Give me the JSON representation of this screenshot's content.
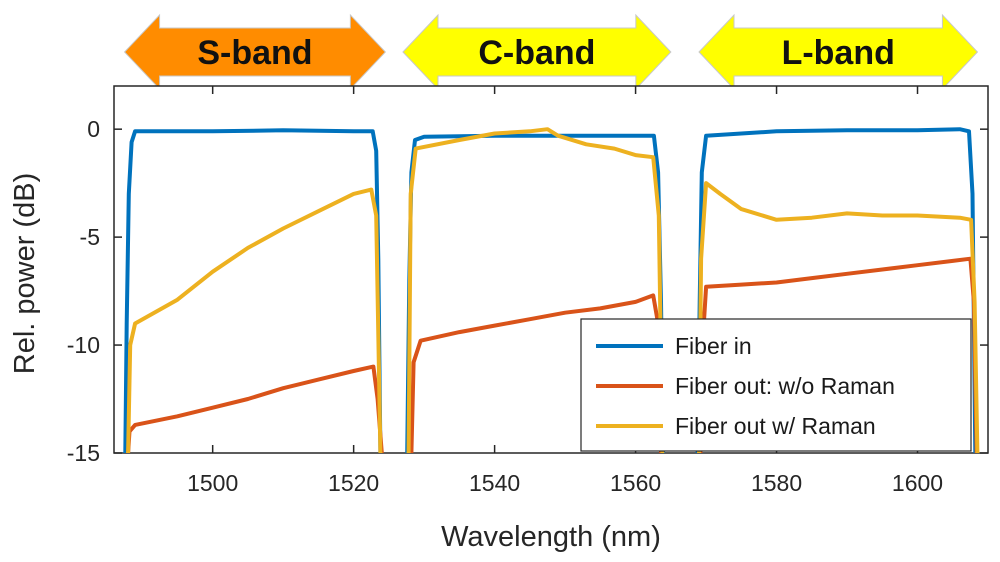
{
  "chart_data": {
    "type": "line",
    "xlabel": "Wavelength (nm)",
    "ylabel": "Rel. power (dB)",
    "xlim": [
      1486,
      1610
    ],
    "ylim": [
      -15,
      2
    ],
    "xticks": [
      1500,
      1520,
      1540,
      1560,
      1580,
      1600
    ],
    "yticks": [
      0,
      -5,
      -10,
      -15
    ],
    "xtick_labels": [
      "1500",
      "1520",
      "1540",
      "1560",
      "1580",
      "1600"
    ],
    "ytick_labels": [
      "0",
      "-5",
      "-10",
      "-15"
    ],
    "grid": false,
    "legend_position": "bottom-right",
    "bands": [
      {
        "label": "S-band",
        "start": 1487.5,
        "end": 1524.5,
        "color": "#FF8C00"
      },
      {
        "label": "C-band",
        "start": 1527.0,
        "end": 1565.0,
        "color": "#FFFF00"
      },
      {
        "label": "L-band",
        "start": 1569.0,
        "end": 1608.5,
        "color": "#FFFF00"
      }
    ],
    "series": [
      {
        "name": "Fiber in",
        "color": "#0072BD",
        "segments": [
          [
            [
              1487.6,
              -15
            ],
            [
              1487.8,
              -9
            ],
            [
              1488.1,
              -3
            ],
            [
              1488.5,
              -0.6
            ],
            [
              1489,
              -0.1
            ],
            [
              1500,
              -0.1
            ],
            [
              1510,
              -0.05
            ],
            [
              1520,
              -0.1
            ],
            [
              1522.7,
              -0.1
            ],
            [
              1523.2,
              -1
            ],
            [
              1523.5,
              -6
            ],
            [
              1523.8,
              -15
            ]
          ],
          [
            [
              1527.6,
              -15
            ],
            [
              1527.9,
              -7
            ],
            [
              1528.2,
              -2
            ],
            [
              1528.7,
              -0.5
            ],
            [
              1530,
              -0.35
            ],
            [
              1540,
              -0.3
            ],
            [
              1550,
              -0.3
            ],
            [
              1560,
              -0.3
            ],
            [
              1562.6,
              -0.3
            ],
            [
              1563.2,
              -2
            ],
            [
              1563.6,
              -8
            ],
            [
              1563.9,
              -15
            ]
          ],
          [
            [
              1568.8,
              -15
            ],
            [
              1569.1,
              -8
            ],
            [
              1569.4,
              -2
            ],
            [
              1570,
              -0.3
            ],
            [
              1580,
              -0.1
            ],
            [
              1590,
              -0.05
            ],
            [
              1600,
              -0.05
            ],
            [
              1606,
              0
            ],
            [
              1607.3,
              -0.1
            ],
            [
              1607.8,
              -3
            ],
            [
              1608.2,
              -15
            ]
          ]
        ]
      },
      {
        "name": "Fiber out: w/o Raman",
        "color": "#D95319",
        "segments": [
          [
            [
              1488,
              -15
            ],
            [
              1488.2,
              -14
            ],
            [
              1489,
              -13.7
            ],
            [
              1495,
              -13.3
            ],
            [
              1500,
              -12.9
            ],
            [
              1505,
              -12.5
            ],
            [
              1510,
              -12.0
            ],
            [
              1515,
              -11.6
            ],
            [
              1520,
              -11.2
            ],
            [
              1522.8,
              -11.0
            ],
            [
              1523.4,
              -12.5
            ],
            [
              1524,
              -15
            ]
          ],
          [
            [
              1528.2,
              -15
            ],
            [
              1528.5,
              -10.8
            ],
            [
              1529.5,
              -9.8
            ],
            [
              1535,
              -9.4
            ],
            [
              1540,
              -9.1
            ],
            [
              1545,
              -8.8
            ],
            [
              1550,
              -8.5
            ],
            [
              1555,
              -8.3
            ],
            [
              1560,
              -8.0
            ],
            [
              1562.5,
              -7.7
            ],
            [
              1563.2,
              -9
            ],
            [
              1563.6,
              -15
            ]
          ],
          [
            [
              1569.2,
              -15
            ],
            [
              1569.5,
              -10
            ],
            [
              1570,
              -7.3
            ],
            [
              1575,
              -7.2
            ],
            [
              1580,
              -7.1
            ],
            [
              1585,
              -6.9
            ],
            [
              1590,
              -6.7
            ],
            [
              1595,
              -6.5
            ],
            [
              1600,
              -6.3
            ],
            [
              1605,
              -6.1
            ],
            [
              1607.5,
              -6.0
            ],
            [
              1608,
              -8
            ],
            [
              1608.4,
              -15
            ]
          ]
        ]
      },
      {
        "name": "Fiber out w/ Raman",
        "color": "#EDB120",
        "segments": [
          [
            [
              1488,
              -15
            ],
            [
              1488.3,
              -10
            ],
            [
              1489,
              -9.0
            ],
            [
              1495,
              -7.9
            ],
            [
              1500,
              -6.6
            ],
            [
              1505,
              -5.5
            ],
            [
              1510,
              -4.6
            ],
            [
              1515,
              -3.8
            ],
            [
              1520,
              -3.0
            ],
            [
              1522.5,
              -2.8
            ],
            [
              1523.2,
              -4
            ],
            [
              1523.8,
              -15
            ]
          ],
          [
            [
              1527.8,
              -15
            ],
            [
              1528.1,
              -3
            ],
            [
              1528.8,
              -0.9
            ],
            [
              1535,
              -0.5
            ],
            [
              1540,
              -0.2
            ],
            [
              1545,
              -0.1
            ],
            [
              1547.5,
              0
            ],
            [
              1549,
              -0.3
            ],
            [
              1553,
              -0.7
            ],
            [
              1557,
              -0.9
            ],
            [
              1560,
              -1.2
            ],
            [
              1562.5,
              -1.3
            ],
            [
              1563.3,
              -4
            ],
            [
              1563.8,
              -15
            ]
          ],
          [
            [
              1569,
              -15
            ],
            [
              1569.3,
              -6
            ],
            [
              1570,
              -2.5
            ],
            [
              1572,
              -3.0
            ],
            [
              1575,
              -3.7
            ],
            [
              1580,
              -4.2
            ],
            [
              1585,
              -4.1
            ],
            [
              1590,
              -3.9
            ],
            [
              1595,
              -4.0
            ],
            [
              1600,
              -4.0
            ],
            [
              1606,
              -4.1
            ],
            [
              1607.6,
              -4.2
            ],
            [
              1608.1,
              -8
            ],
            [
              1608.5,
              -15
            ]
          ]
        ]
      }
    ]
  }
}
